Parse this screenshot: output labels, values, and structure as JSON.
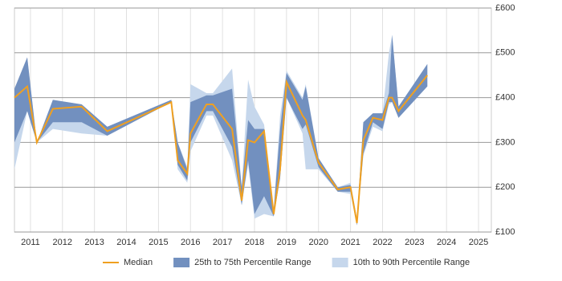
{
  "chart_data": {
    "type": "line",
    "x": [
      2010.5,
      2010.9,
      2011.2,
      2011.7,
      2012.6,
      2013.4,
      2015.4,
      2015.6,
      2015.9,
      2016.0,
      2016.5,
      2016.7,
      2017.3,
      2017.6,
      2017.8,
      2018.0,
      2018.3,
      2018.6,
      2018.8,
      2019.0,
      2019.5,
      2019.6,
      2020.0,
      2020.6,
      2021.0,
      2021.2,
      2021.4,
      2021.7,
      2022.0,
      2022.2,
      2022.3,
      2022.5,
      2023.4
    ],
    "series": [
      {
        "name": "10th to 90th Percentile Range",
        "color": "#c6d7ec",
        "low": [
          240,
          370,
          300,
          330,
          320,
          315,
          390,
          240,
          210,
          280,
          360,
          360,
          260,
          160,
          250,
          130,
          140,
          135,
          220,
          400,
          320,
          240,
          240,
          190,
          185,
          115,
          270,
          335,
          325,
          385,
          390,
          355,
          425
        ],
        "high": [
          420,
          490,
          300,
          395,
          385,
          335,
          395,
          300,
          245,
          430,
          410,
          410,
          465,
          200,
          440,
          380,
          340,
          150,
          360,
          460,
          400,
          430,
          265,
          200,
          210,
          130,
          345,
          365,
          365,
          500,
          540,
          380,
          475
        ]
      },
      {
        "name": "25th to 75th Percentile Range",
        "color": "#7290bf",
        "low": [
          300,
          370,
          300,
          345,
          345,
          315,
          390,
          250,
          215,
          300,
          370,
          370,
          290,
          160,
          260,
          140,
          180,
          135,
          220,
          400,
          330,
          340,
          245,
          190,
          190,
          115,
          275,
          345,
          330,
          390,
          390,
          355,
          425
        ],
        "high": [
          420,
          490,
          300,
          395,
          385,
          335,
          395,
          300,
          240,
          390,
          405,
          405,
          420,
          200,
          350,
          330,
          330,
          150,
          330,
          455,
          395,
          425,
          265,
          200,
          205,
          130,
          345,
          365,
          365,
          410,
          540,
          380,
          475
        ]
      },
      {
        "name": "Median",
        "color": "#f0a020",
        "values": [
          400,
          425,
          300,
          375,
          380,
          325,
          390,
          260,
          230,
          320,
          385,
          385,
          330,
          170,
          305,
          300,
          325,
          140,
          240,
          435,
          360,
          350,
          255,
          195,
          200,
          120,
          305,
          355,
          350,
          400,
          400,
          370,
          450
        ]
      }
    ],
    "xlim": [
      2010.5,
      2025.4
    ],
    "xticks": [
      2011,
      2012,
      2013,
      2014,
      2015,
      2016,
      2017,
      2018,
      2019,
      2020,
      2021,
      2022,
      2023,
      2024,
      2025
    ],
    "ylim": [
      100,
      600
    ],
    "yticks": [
      {
        "value": 100,
        "label": "£100"
      },
      {
        "value": 200,
        "label": "£200"
      },
      {
        "value": 300,
        "label": "£300"
      },
      {
        "value": 400,
        "label": "£400"
      },
      {
        "value": 500,
        "label": "£500"
      },
      {
        "value": 600,
        "label": "£600"
      }
    ],
    "grid": true
  }
}
